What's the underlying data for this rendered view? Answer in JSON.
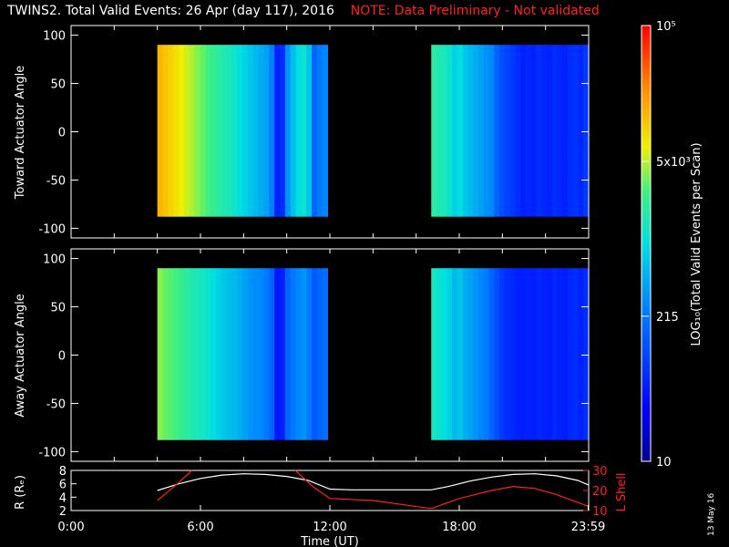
{
  "title": {
    "main": "TWINS2. Total Valid Events: 26 Apr (day 117), 2016",
    "note": "NOTE: Data Preliminary - Not validated"
  },
  "datestamp": "13 May 16",
  "colors": {
    "background": "#000000",
    "axes": "#ffffff",
    "note": "#ff2020",
    "red_line": "#ff2020",
    "white_line": "#ffffff"
  },
  "chart_data": [
    {
      "type": "heatmap",
      "panel": "toward",
      "ylabel": "Toward Actuator Angle",
      "ylim": [
        -110,
        110
      ],
      "yticks": [
        100,
        50,
        0,
        -50,
        -100
      ],
      "xlim_hours": [
        0,
        24
      ],
      "data_extent_y": [
        -88,
        90
      ],
      "segments": [
        {
          "start_h": 4.0,
          "end_h": 11.9,
          "levels": [
            0.8,
            0.78,
            0.76,
            0.74,
            0.72,
            0.7,
            0.68,
            0.66,
            0.64,
            0.62,
            0.6,
            0.58,
            0.56,
            0.55,
            0.53,
            0.5,
            0.48,
            0.46,
            0.44,
            0.42,
            0.4,
            0.35,
            0.18,
            0.2,
            0.38,
            0.45,
            0.5,
            0.52,
            0.46,
            0.3,
            0.34,
            0.36
          ]
        },
        {
          "start_h": 16.7,
          "end_h": 24.0,
          "levels": [
            0.58,
            0.56,
            0.55,
            0.52,
            0.48,
            0.5,
            0.46,
            0.44,
            0.42,
            0.4,
            0.38,
            0.36,
            0.3,
            0.26,
            0.24,
            0.22,
            0.2,
            0.18,
            0.19,
            0.18,
            0.2,
            0.19,
            0.18,
            0.2,
            0.19,
            0.18,
            0.2,
            0.21,
            0.19,
            0.22
          ]
        }
      ]
    },
    {
      "type": "heatmap",
      "panel": "away",
      "ylabel": "Away Actuator Angle",
      "ylim": [
        -110,
        110
      ],
      "yticks": [
        100,
        50,
        0,
        -50,
        -100
      ],
      "xlim_hours": [
        0,
        24
      ],
      "data_extent_y": [
        -88,
        90
      ],
      "segments": [
        {
          "start_h": 4.0,
          "end_h": 11.9,
          "levels": [
            0.66,
            0.64,
            0.63,
            0.62,
            0.6,
            0.58,
            0.56,
            0.55,
            0.54,
            0.52,
            0.5,
            0.48,
            0.46,
            0.45,
            0.44,
            0.42,
            0.4,
            0.38,
            0.37,
            0.36,
            0.34,
            0.3,
            0.16,
            0.18,
            0.3,
            0.34,
            0.36,
            0.38,
            0.34,
            0.28,
            0.3,
            0.32
          ]
        },
        {
          "start_h": 16.7,
          "end_h": 24.0,
          "levels": [
            0.54,
            0.52,
            0.5,
            0.48,
            0.44,
            0.46,
            0.42,
            0.4,
            0.38,
            0.36,
            0.34,
            0.3,
            0.26,
            0.22,
            0.2,
            0.19,
            0.18,
            0.17,
            0.18,
            0.17,
            0.19,
            0.18,
            0.17,
            0.19,
            0.18,
            0.17,
            0.19,
            0.2,
            0.18,
            0.2
          ]
        }
      ]
    },
    {
      "type": "line",
      "panel": "orbit",
      "ylabel": "R (Rₑ)",
      "y2label": "L Shell",
      "ylim": [
        2,
        8
      ],
      "yticks": [
        2,
        4,
        6,
        8
      ],
      "y2lim": [
        10,
        30
      ],
      "y2ticks": [
        10,
        20,
        30
      ],
      "xlabel": "Time (UT)",
      "xticks": [
        "0:00",
        "6:00",
        "12:00",
        "18:00",
        "23:59"
      ],
      "xtick_hours": [
        0,
        6,
        12,
        18,
        23.98
      ],
      "series": [
        {
          "color": "white",
          "axis": "R",
          "x": [
            4.0,
            5.0,
            6.0,
            7.0,
            8.0,
            9.0,
            10.0,
            11.0,
            12.0,
            13.0,
            14.0,
            15.0,
            16.0,
            16.7,
            17.5,
            18.5,
            19.5,
            20.5,
            21.5,
            22.5,
            23.5,
            24.0
          ],
          "y": [
            5.0,
            6.0,
            6.8,
            7.3,
            7.5,
            7.4,
            7.1,
            6.5,
            5.2,
            5.1,
            5.1,
            5.1,
            5.1,
            5.1,
            5.6,
            6.4,
            7.0,
            7.4,
            7.5,
            7.2,
            6.5,
            5.8
          ]
        },
        {
          "color": "red",
          "axis": "L",
          "segments": [
            {
              "x": [
                4.0,
                5.0,
                5.6
              ],
              "y": [
                15,
                24,
                30
              ]
            },
            {
              "x": [
                10.4,
                11.2,
                12.0,
                14.0,
                16.7
              ],
              "y": [
                30,
                22,
                16,
                15,
                11
              ]
            },
            {
              "x": [
                16.7,
                18.0,
                19.5,
                20.5,
                21.5,
                22.5,
                23.5,
                24.0
              ],
              "y": [
                11,
                16,
                20,
                22,
                21,
                18,
                14,
                12
              ]
            }
          ]
        }
      ]
    },
    {
      "type": "colorbar",
      "label": "LOG₁₀(Total Valid Events per Scan)",
      "ticks": [
        {
          "label": "10",
          "pos": 0.0
        },
        {
          "label": "215",
          "pos": 0.333
        },
        {
          "label": "5x10³",
          "pos": 0.688
        },
        {
          "label": "10⁵",
          "pos": 1.0
        }
      ]
    }
  ]
}
